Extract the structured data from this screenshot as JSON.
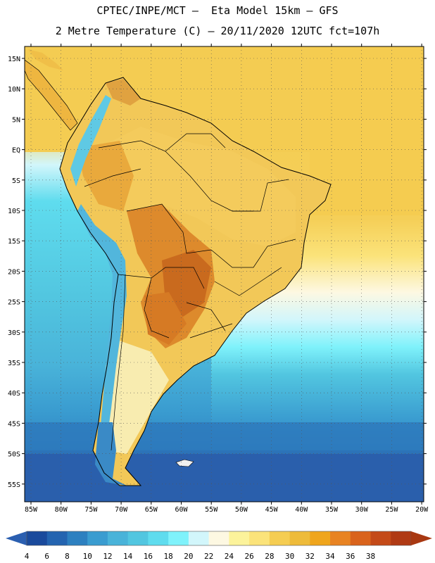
{
  "header": {
    "title_line1": "CPTEC/INPE/MCT –  Eta Model 15km – GFS",
    "title_line2": "2 Metre Temperature (C) – 20/11/2020 12UTC fct=107h"
  },
  "map": {
    "lat_labels": [
      "15N",
      "10N",
      "5N",
      "EQ",
      "5S",
      "10S",
      "15S",
      "20S",
      "25S",
      "30S",
      "35S",
      "40S",
      "45S",
      "50S",
      "55S"
    ],
    "lon_labels": [
      "85W",
      "80W",
      "75W",
      "70W",
      "65W",
      "60W",
      "55W",
      "50W",
      "45W",
      "40W",
      "35W",
      "30W",
      "25W",
      "20W"
    ]
  },
  "colorbar": {
    "labels": [
      "4",
      "6",
      "8",
      "10",
      "12",
      "14",
      "16",
      "18",
      "20",
      "22",
      "24",
      "26",
      "28",
      "30",
      "32",
      "34",
      "36",
      "38"
    ],
    "colors": [
      "#1a4a9c",
      "#2464b0",
      "#2d80c0",
      "#3a9cd0",
      "#49b3d9",
      "#52c6e0",
      "#5fdcee",
      "#7ff2fb",
      "#d2f6fb",
      "#fdf8e2",
      "#fcf39b",
      "#fbe37a",
      "#f5cd52",
      "#eebb3a",
      "#efa51c",
      "#e88322",
      "#d9631c",
      "#c44a18",
      "#b03a14"
    ],
    "under_color": "#2b5fb0",
    "over_color": "#a83812"
  }
}
